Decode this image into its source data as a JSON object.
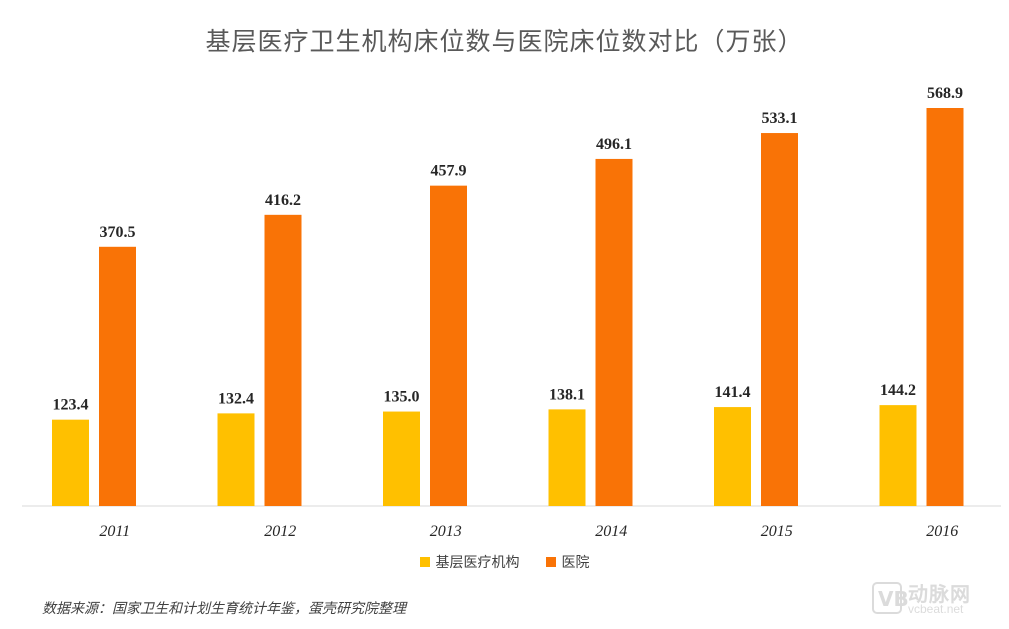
{
  "chart_data": {
    "type": "bar",
    "title": "基层医疗卫生机构床位数与医院床位数对比（万张）",
    "categories": [
      "2011",
      "2012",
      "2013",
      "2014",
      "2015",
      "2016"
    ],
    "series": [
      {
        "name": "基层医疗机构",
        "color": "#FFC000",
        "values": [
          123.4,
          132.4,
          135.0,
          138.1,
          141.4,
          144.2
        ]
      },
      {
        "name": "医院",
        "color": "#F97306",
        "values": [
          370.5,
          416.2,
          457.9,
          496.1,
          533.1,
          568.9
        ]
      }
    ],
    "ylim": [
      0,
      568.9
    ],
    "grid": false,
    "legend_position": "bottom",
    "data_labels": true
  },
  "source_note": "数据来源：国家卫生和计划生育统计年鉴，蛋壳研究院整理",
  "watermark": {
    "logo_letter": "VB",
    "brand": "动脉网",
    "url": "vcbeat.net"
  }
}
